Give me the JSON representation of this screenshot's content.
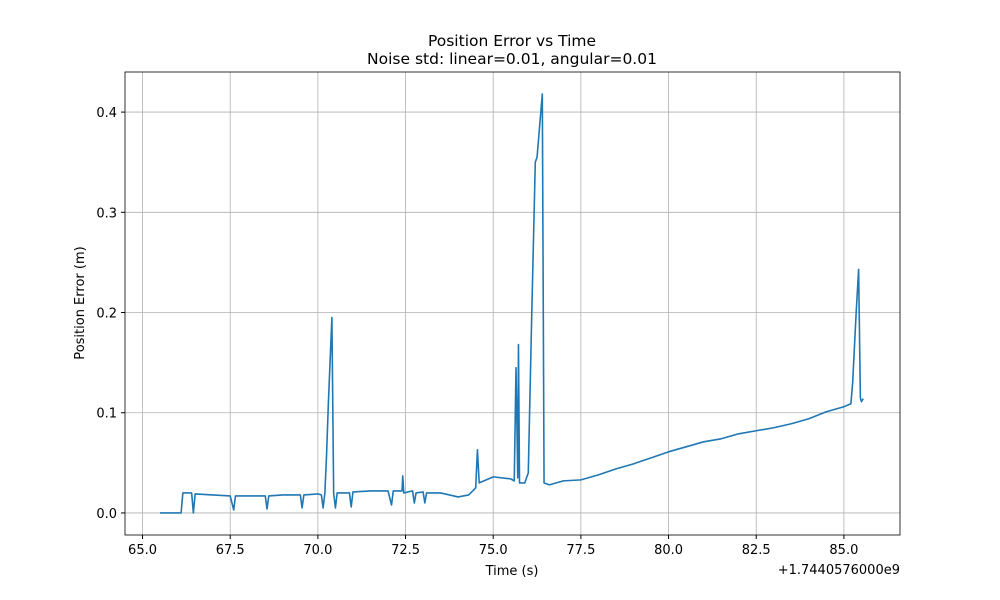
{
  "chart_data": {
    "type": "line",
    "title": "Position Error vs Time",
    "subtitle": "Noise std: linear=0.01, angular=0.01",
    "xlabel": "Time (s)",
    "ylabel": "Position Error (m)",
    "x_offset_text": "+1.7440576000e9",
    "color": "#1f77b4",
    "grid": true,
    "xlim": [
      64.5,
      86.6
    ],
    "ylim": [
      -0.022,
      0.44
    ],
    "xticks": [
      {
        "value": 65,
        "label": "65.0"
      },
      {
        "value": 67.5,
        "label": "67.5"
      },
      {
        "value": 70,
        "label": "70.0"
      },
      {
        "value": 72.5,
        "label": "72.5"
      },
      {
        "value": 75,
        "label": "75.0"
      },
      {
        "value": 77.5,
        "label": "77.5"
      },
      {
        "value": 80,
        "label": "80.0"
      },
      {
        "value": 82.5,
        "label": "82.5"
      },
      {
        "value": 85,
        "label": "85.0"
      }
    ],
    "yticks": [
      {
        "value": 0,
        "label": "0.0"
      },
      0.1,
      0.2,
      0.3,
      0.4
    ],
    "x": [
      65.5,
      66.1,
      66.15,
      66.4,
      66.45,
      66.5,
      67.0,
      67.5,
      67.6,
      67.65,
      68.0,
      68.5,
      68.55,
      68.6,
      69.0,
      69.5,
      69.55,
      69.6,
      70.0,
      70.1,
      70.15,
      70.2,
      70.25,
      70.3,
      70.4,
      70.45,
      70.5,
      70.55,
      70.9,
      70.95,
      71.0,
      71.5,
      72.0,
      72.1,
      72.15,
      72.4,
      72.42,
      72.45,
      72.7,
      72.75,
      72.8,
      73.0,
      73.05,
      73.1,
      73.5,
      74.0,
      74.3,
      74.5,
      74.55,
      74.6,
      75.0,
      75.5,
      75.6,
      75.65,
      75.7,
      75.72,
      75.75,
      75.9,
      76.0,
      76.1,
      76.2,
      76.25,
      76.4,
      76.45,
      76.6,
      77.0,
      77.5,
      78.0,
      78.5,
      79.0,
      79.5,
      80.0,
      80.5,
      81.0,
      81.5,
      82.0,
      82.5,
      83.0,
      83.5,
      84.0,
      84.5,
      85.0,
      85.2,
      85.25,
      85.35,
      85.42,
      85.47,
      85.5,
      85.55
    ],
    "values": [
      0.0,
      0.0,
      0.02,
      0.02,
      0.0,
      0.019,
      0.018,
      0.017,
      0.003,
      0.017,
      0.017,
      0.017,
      0.004,
      0.017,
      0.018,
      0.018,
      0.005,
      0.018,
      0.019,
      0.018,
      0.005,
      0.02,
      0.06,
      0.11,
      0.195,
      0.02,
      0.005,
      0.02,
      0.02,
      0.006,
      0.021,
      0.022,
      0.022,
      0.008,
      0.022,
      0.022,
      0.037,
      0.02,
      0.022,
      0.01,
      0.02,
      0.021,
      0.01,
      0.02,
      0.02,
      0.016,
      0.018,
      0.025,
      0.063,
      0.03,
      0.036,
      0.034,
      0.032,
      0.145,
      0.035,
      0.168,
      0.03,
      0.03,
      0.04,
      0.2,
      0.35,
      0.355,
      0.418,
      0.03,
      0.028,
      0.032,
      0.033,
      0.038,
      0.044,
      0.049,
      0.055,
      0.061,
      0.066,
      0.071,
      0.074,
      0.079,
      0.082,
      0.085,
      0.089,
      0.094,
      0.101,
      0.106,
      0.109,
      0.13,
      0.2,
      0.243,
      0.115,
      0.111,
      0.114
    ]
  }
}
